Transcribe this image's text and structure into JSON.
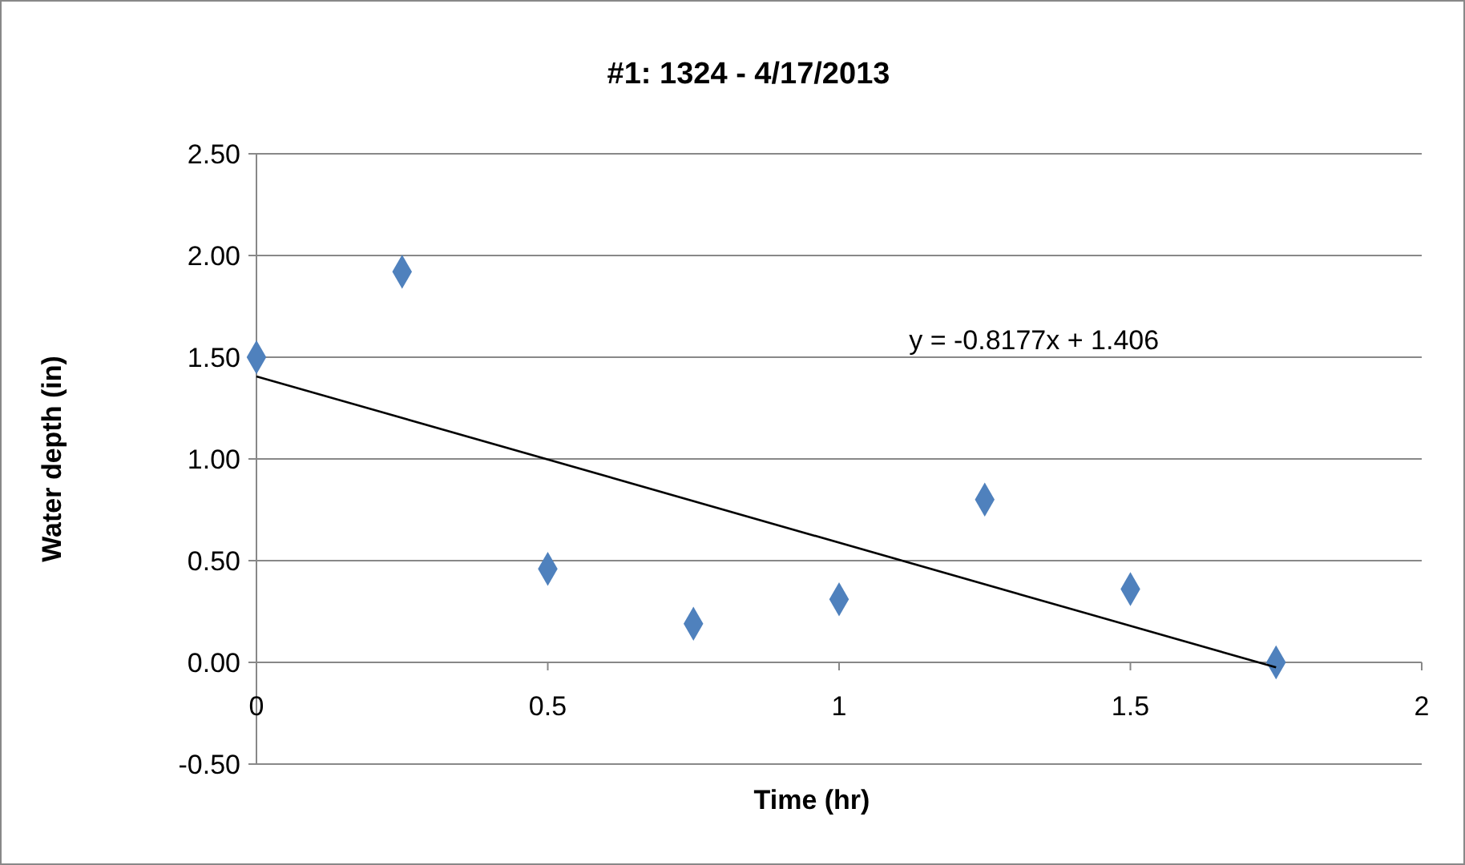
{
  "chart_data": {
    "type": "scatter",
    "title": "#1: 1324 - 4/17/2013",
    "xlabel": "Time (hr)",
    "ylabel": "Water depth (in)",
    "x": [
      0,
      0.25,
      0.5,
      0.75,
      1,
      1.25,
      1.5,
      1.75
    ],
    "series": [
      {
        "color": "#4f81bd",
        "marker": "diamond",
        "values": [
          1.5,
          1.92,
          0.46,
          0.19,
          0.31,
          0.8,
          0.36,
          0.0
        ]
      },
      {
        "type": "line",
        "color": "#000000",
        "x": [
          0,
          1.75
        ],
        "values": [
          1.406,
          -0.025
        ]
      }
    ],
    "annotations": [
      "y = -0.8177x + 1.406"
    ],
    "xlim": [
      0,
      2
    ],
    "xticks": [
      0,
      0.5,
      1,
      1.5,
      2
    ],
    "ylim": [
      -0.5,
      2.5
    ],
    "yticks": [
      {
        "value": -0.5,
        "label": "-0.50"
      },
      {
        "value": 0,
        "label": "0.00"
      },
      {
        "value": 0.5,
        "label": "0.50"
      },
      {
        "value": 1,
        "label": "1.00"
      },
      {
        "value": 1.5,
        "label": "1.50"
      },
      {
        "value": 2,
        "label": "2.00"
      },
      {
        "value": 2.5,
        "label": "2.50"
      }
    ],
    "grid": "y"
  }
}
